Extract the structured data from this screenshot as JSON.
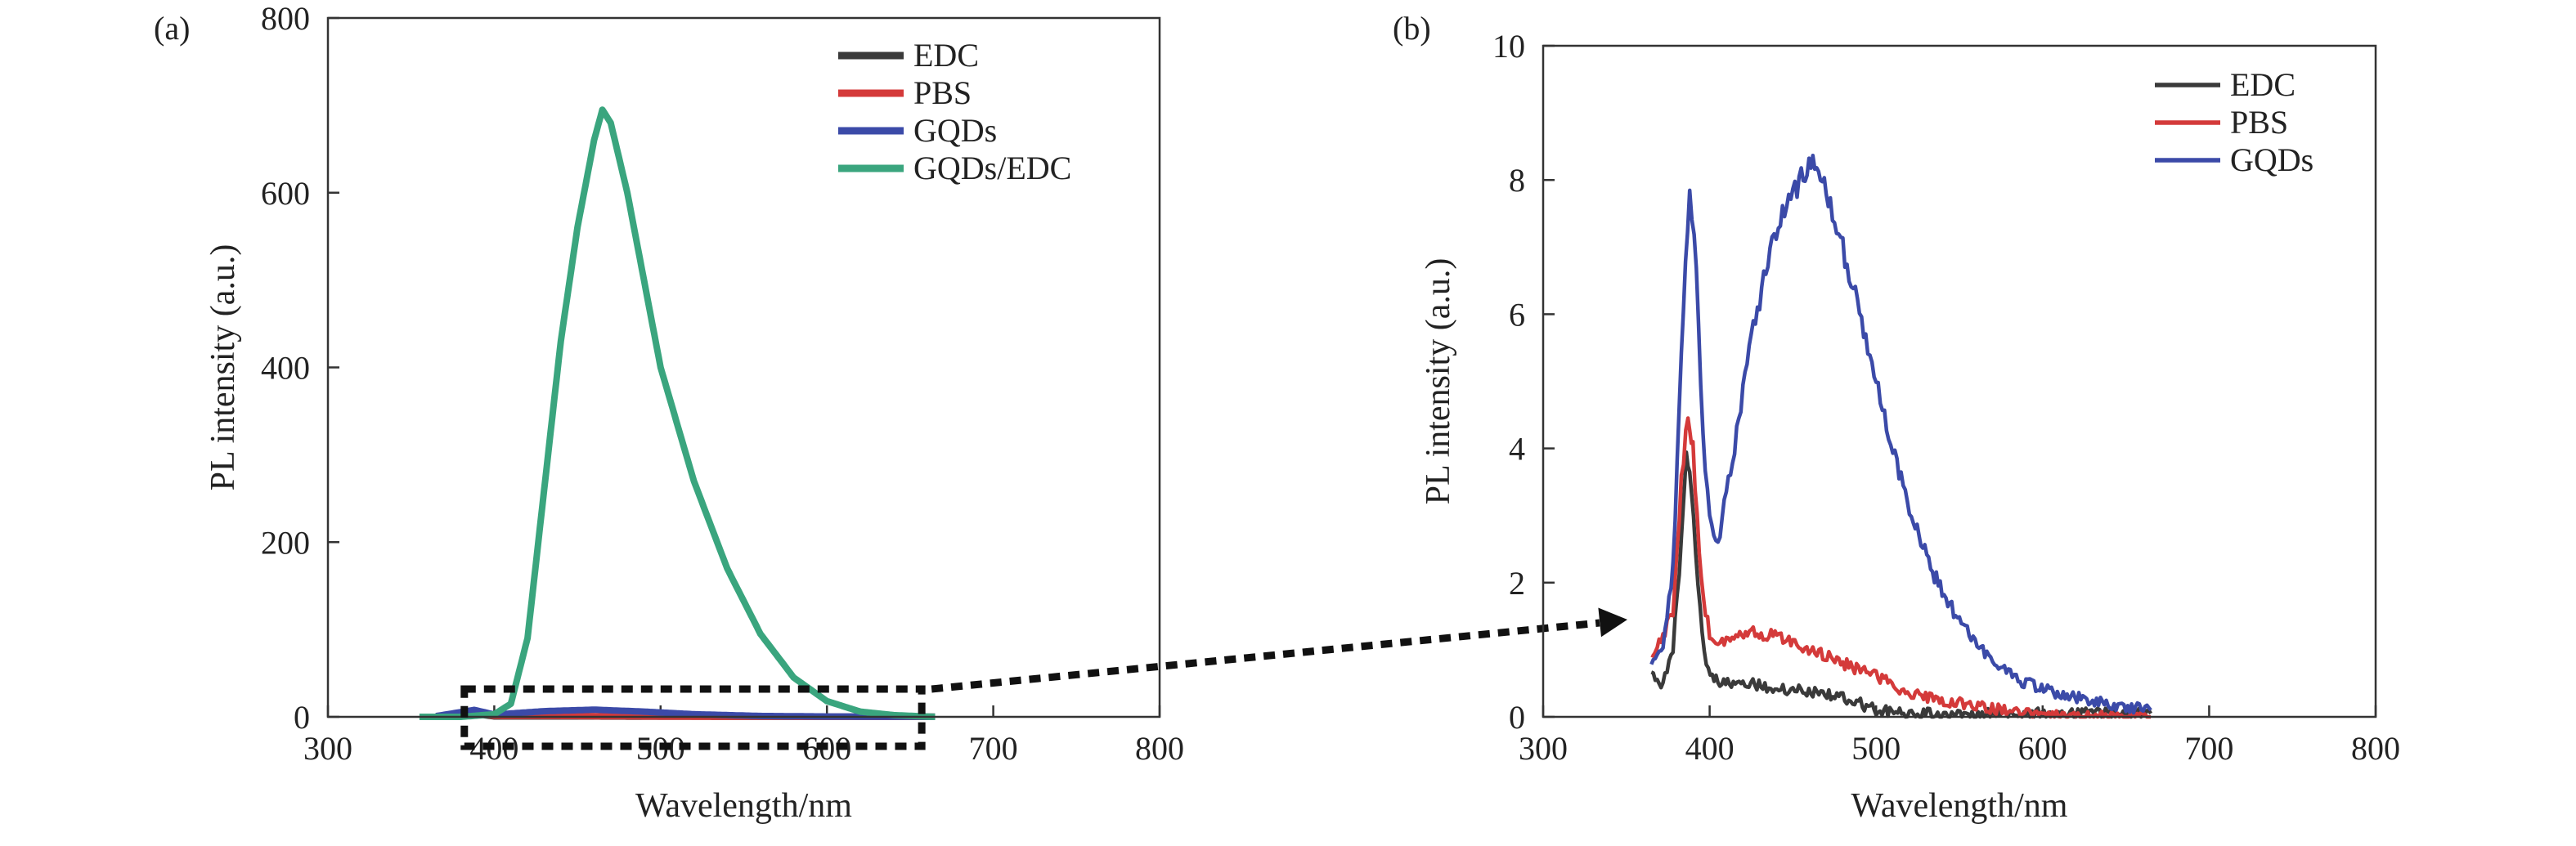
{
  "chart_data": [
    {
      "panel_label": "(a)",
      "type": "line",
      "xlabel": "Wavelength/nm",
      "ylabel": "PL intensity (a.u.)",
      "xlim": [
        300,
        800
      ],
      "ylim": [
        0,
        800
      ],
      "x_ticks": [
        "300",
        "400",
        "500",
        "600",
        "700",
        "800"
      ],
      "y_ticks": [
        "0",
        "200",
        "400",
        "600",
        "800"
      ],
      "legend_position": "top-right",
      "series": [
        {
          "name": "EDC",
          "color": "#3a3a3a",
          "x": [
            365,
            385,
            400,
            450,
            500,
            550,
            600,
            665
          ],
          "y": [
            0.6,
            4.0,
            0.5,
            0.5,
            0.2,
            0.1,
            0.1,
            0.1
          ]
        },
        {
          "name": "PBS",
          "color": "#d43a3a",
          "x": [
            365,
            385,
            400,
            450,
            500,
            550,
            600,
            665
          ],
          "y": [
            0.9,
            4.6,
            1.3,
            0.9,
            0.4,
            0.2,
            0.1,
            0.1
          ]
        },
        {
          "name": "GQDs",
          "color": "#3b4aa8",
          "x": [
            365,
            388,
            400,
            430,
            460,
            490,
            520,
            560,
            600,
            665
          ],
          "y": [
            0.8,
            8.0,
            2.6,
            6.5,
            8.2,
            6.0,
            3.0,
            1.0,
            0.4,
            0.1
          ]
        },
        {
          "name": "GQDs/EDC",
          "color": "#3aa57e",
          "x": [
            355,
            380,
            400,
            410,
            420,
            430,
            440,
            450,
            460,
            465,
            470,
            480,
            490,
            500,
            520,
            540,
            560,
            580,
            600,
            620,
            640,
            665
          ],
          "y": [
            0,
            0,
            3,
            15,
            90,
            260,
            430,
            560,
            660,
            695,
            680,
            600,
            500,
            400,
            270,
            170,
            95,
            45,
            18,
            6,
            2,
            0
          ]
        }
      ],
      "annotation": "dashed box around 380–655 nm near baseline, arrow to panel (b)"
    },
    {
      "panel_label": "(b)",
      "type": "line",
      "xlabel": "Wavelength/nm",
      "ylabel": "PL intensity (a.u.)",
      "xlim": [
        300,
        800
      ],
      "ylim": [
        0,
        10
      ],
      "x_ticks": [
        "300",
        "400",
        "500",
        "600",
        "700",
        "800"
      ],
      "y_ticks": [
        "0",
        "2",
        "4",
        "6",
        "8",
        "10"
      ],
      "legend_position": "top-right",
      "series": [
        {
          "name": "EDC",
          "color": "#3a3a3a",
          "x": [
            365,
            372,
            378,
            383,
            386,
            389,
            393,
            398,
            405,
            420,
            450,
            480,
            500,
            520,
            560,
            620,
            665
          ],
          "y": [
            0.6,
            0.5,
            1.0,
            2.6,
            3.9,
            3.5,
            2.0,
            0.7,
            0.5,
            0.5,
            0.4,
            0.3,
            0.1,
            0.05,
            0.05,
            0.05,
            0.05
          ]
        },
        {
          "name": "PBS",
          "color": "#d43a3a",
          "x": [
            365,
            372,
            378,
            383,
            387,
            390,
            395,
            400,
            410,
            425,
            450,
            480,
            500,
            520,
            560,
            600,
            620,
            665
          ],
          "y": [
            0.9,
            1.2,
            1.6,
            3.5,
            4.6,
            4.0,
            2.0,
            1.2,
            1.1,
            1.3,
            1.1,
            0.8,
            0.6,
            0.35,
            0.15,
            0.05,
            0.0,
            0.0
          ]
        },
        {
          "name": "GQDs",
          "color": "#3b4aa8",
          "x": [
            365,
            372,
            378,
            383,
            388,
            392,
            396,
            400,
            405,
            415,
            425,
            435,
            445,
            455,
            462,
            470,
            480,
            490,
            500,
            510,
            520,
            535,
            550,
            570,
            590,
            610,
            630,
            650,
            665
          ],
          "y": [
            0.8,
            1.0,
            2.2,
            5.5,
            8.0,
            6.8,
            4.2,
            2.9,
            2.6,
            4.0,
            5.6,
            6.8,
            7.6,
            8.0,
            8.2,
            7.8,
            7.0,
            6.0,
            5.0,
            4.0,
            3.1,
            2.1,
            1.4,
            0.8,
            0.5,
            0.35,
            0.25,
            0.15,
            0.1
          ]
        }
      ]
    }
  ]
}
